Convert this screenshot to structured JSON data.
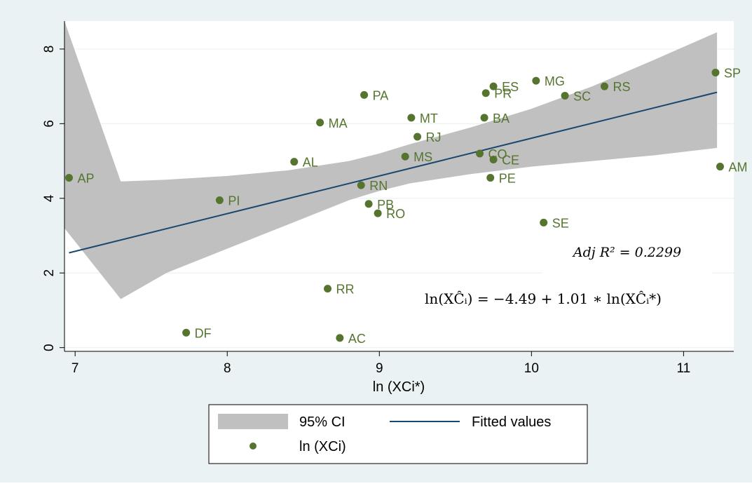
{
  "colors": {
    "outer_bg": "#eaf2f3",
    "plot_bg": "#ffffff",
    "grid": "#eaf2f3",
    "ci_band": "#c0c0c0",
    "fit_line": "#1a476f",
    "marker": "#55752f",
    "text": "#000000"
  },
  "annotations": {
    "adj_r2": "Adj R² = 0.2299",
    "equation": "ln(XĈᵢ) = −4.49 + 1.01 ∗ ln(XĈᵢ*)"
  },
  "chart_data": {
    "type": "scatter",
    "xlabel": "ln (XCi*)",
    "ylabel": "",
    "xlim": [
      6.93,
      11.33
    ],
    "ylim": [
      -0.1,
      8.75
    ],
    "xticks": [
      7,
      8,
      9,
      10,
      11
    ],
    "yticks": [
      0,
      2,
      4,
      6,
      8
    ],
    "grid": true,
    "legend_position": "bottom",
    "legend": {
      "ci": "95% CI",
      "fit": "Fitted values",
      "points": "ln (XCi)"
    },
    "fit": {
      "intercept": -4.49,
      "slope": 1.01,
      "x_range": [
        6.96,
        11.22
      ]
    },
    "ci_band": {
      "x": [
        6.93,
        7.3,
        7.6,
        8.0,
        8.4,
        8.8,
        9.0,
        9.2,
        9.6,
        10.0,
        10.4,
        10.8,
        11.22
      ],
      "upper": [
        8.75,
        4.45,
        4.5,
        4.6,
        4.75,
        5.0,
        5.2,
        5.45,
        5.9,
        6.4,
        7.0,
        7.7,
        8.45
      ],
      "lower": [
        3.2,
        1.3,
        2.0,
        2.65,
        3.3,
        3.95,
        4.2,
        4.4,
        4.65,
        4.85,
        5.0,
        5.15,
        5.35
      ]
    },
    "points": [
      {
        "label": "AP",
        "x": 6.96,
        "y": 4.55
      },
      {
        "label": "PI",
        "x": 7.95,
        "y": 3.95
      },
      {
        "label": "DF",
        "x": 7.73,
        "y": 0.4
      },
      {
        "label": "AL",
        "x": 8.44,
        "y": 4.98
      },
      {
        "label": "MA",
        "x": 8.61,
        "y": 6.03
      },
      {
        "label": "RR",
        "x": 8.66,
        "y": 1.58
      },
      {
        "label": "AC",
        "x": 8.74,
        "y": 0.26
      },
      {
        "label": "RN",
        "x": 8.88,
        "y": 4.35
      },
      {
        "label": "PA",
        "x": 8.9,
        "y": 6.77
      },
      {
        "label": "PB",
        "x": 8.93,
        "y": 3.85
      },
      {
        "label": "RO",
        "x": 8.99,
        "y": 3.6
      },
      {
        "label": "MS",
        "x": 9.17,
        "y": 5.12
      },
      {
        "label": "MT",
        "x": 9.21,
        "y": 6.16
      },
      {
        "label": "RJ",
        "x": 9.25,
        "y": 5.65
      },
      {
        "label": "CO",
        "x": 9.66,
        "y": 5.2
      },
      {
        "label": "BA",
        "x": 9.69,
        "y": 6.16
      },
      {
        "label": "PR",
        "x": 9.7,
        "y": 6.82
      },
      {
        "label": "PE",
        "x": 9.73,
        "y": 4.55
      },
      {
        "label": "ES",
        "x": 9.75,
        "y": 7.0
      },
      {
        "label": "CE",
        "x": 9.75,
        "y": 5.04
      },
      {
        "label": "MG",
        "x": 10.03,
        "y": 7.15
      },
      {
        "label": "SE",
        "x": 10.08,
        "y": 3.35
      },
      {
        "label": "SC",
        "x": 10.22,
        "y": 6.75
      },
      {
        "label": "RS",
        "x": 10.48,
        "y": 7.0
      },
      {
        "label": "SP",
        "x": 11.21,
        "y": 7.37
      },
      {
        "label": "AM",
        "x": 11.24,
        "y": 4.85
      }
    ]
  }
}
